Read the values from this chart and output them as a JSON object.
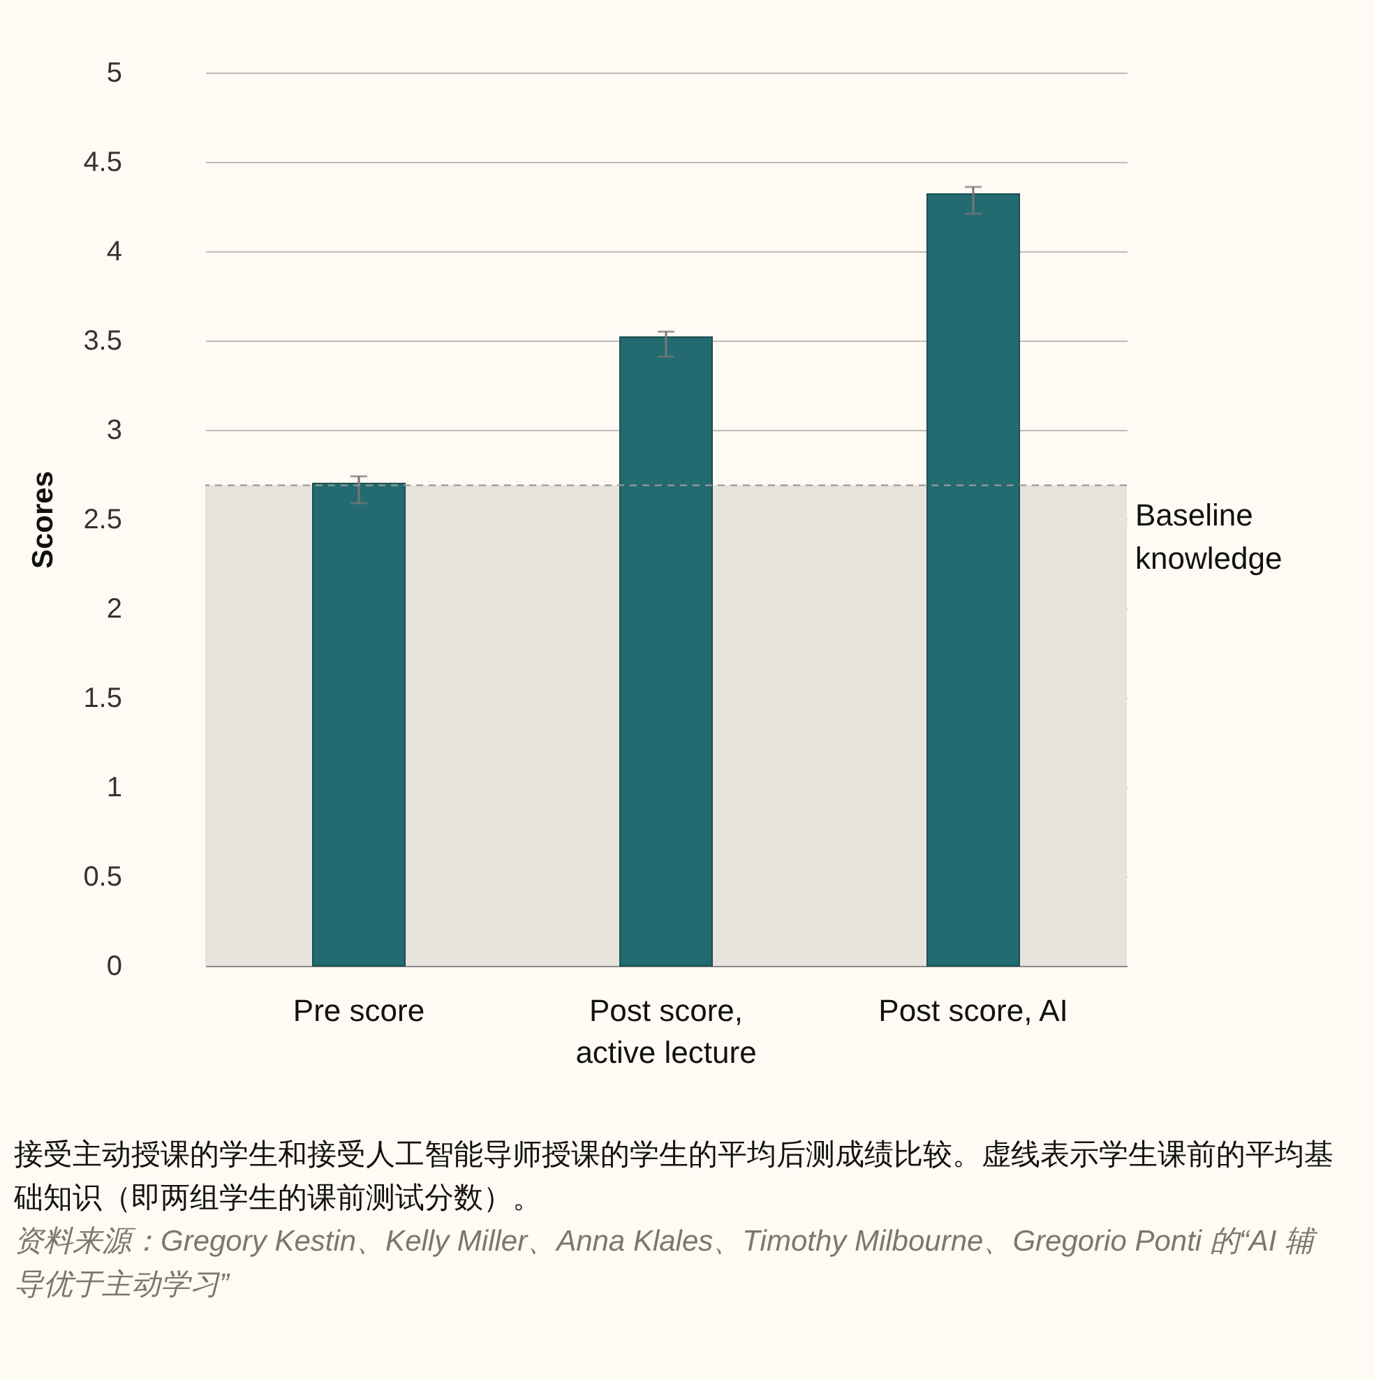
{
  "chart_data": {
    "type": "bar",
    "ylabel": "Scores",
    "categories": [
      "Pre score",
      "Post score,\nactive lecture",
      "Post score, AI"
    ],
    "values": [
      2.7,
      3.52,
      4.32
    ],
    "color": "#236b70",
    "errors": [
      [
        2.59,
        2.74
      ],
      [
        3.41,
        3.55
      ],
      [
        4.21,
        4.36
      ]
    ],
    "ylim": [
      0,
      5
    ],
    "yticks": [
      0,
      0.5,
      1,
      1.5,
      2,
      2.5,
      3,
      3.5,
      4,
      4.5,
      5
    ],
    "grid": "y",
    "ref_lines": [
      {
        "axis": "y",
        "value": 2.69,
        "label": "Baseline\nknowledge",
        "color": "#9a9a9a",
        "line_style": "dashed"
      }
    ],
    "bands": [
      {
        "axis": "y",
        "from": 0,
        "to": 2.69,
        "color": "#e6e3dd"
      }
    ],
    "annotations": [
      "接受主动授课的学生和接受人工智能导师授课的学生的平均后测成绩比较。虚线表示学生课前的平均基础知识（即两组学生的课前测试分数）。",
      "资料来源：Gregory Kestin、Kelly Miller、Anna Klales、Timothy Milbourne、Gregorio Ponti 的“AI 辅导优于主动学习”"
    ]
  }
}
